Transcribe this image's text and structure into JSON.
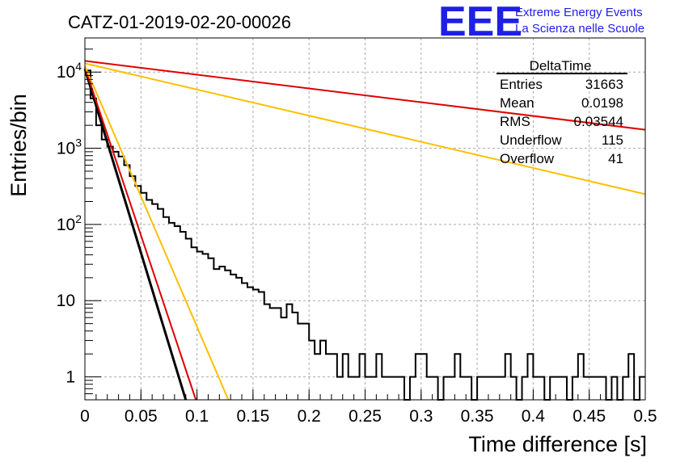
{
  "header": {
    "run_title": "CATZ-01-2019-02-20-00026",
    "logo_text": "EEE",
    "logo_line1": "Extreme Energy Events",
    "logo_line2": "La Scienza nelle Scuole"
  },
  "stats_box": {
    "name": "DeltaTime",
    "rows": [
      {
        "label": "Entries",
        "value": "31663"
      },
      {
        "label": "Mean",
        "value": "0.0198"
      },
      {
        "label": "RMS",
        "value": "0.03544"
      },
      {
        "label": "Underflow",
        "value": "115"
      },
      {
        "label": "Overflow",
        "value": "41"
      }
    ]
  },
  "chart_data": {
    "type": "line",
    "xlabel": "Time difference [s]",
    "ylabel": "Entries/bin",
    "xlim": [
      0,
      0.5
    ],
    "ylim": [
      0.5,
      28000
    ],
    "log_y": true,
    "grid": true,
    "x_ticks": [
      "0",
      "0.05",
      "0.1",
      "0.15",
      "0.2",
      "0.25",
      "0.3",
      "0.35",
      "0.4",
      "0.45",
      "0.5"
    ],
    "y_ticks": [
      {
        "value": 1,
        "base": "1",
        "exp": ""
      },
      {
        "value": 10,
        "base": "10",
        "exp": ""
      },
      {
        "value": 100,
        "base": "10",
        "exp": "2"
      },
      {
        "value": 1000,
        "base": "10",
        "exp": "3"
      },
      {
        "value": 10000,
        "base": "10",
        "exp": "4"
      }
    ],
    "histogram": {
      "bin_width": 0.005,
      "color": "#000000",
      "values": [
        10500,
        4500,
        2000,
        1300,
        1050,
        900,
        780,
        600,
        430,
        320,
        260,
        210,
        185,
        160,
        125,
        105,
        95,
        80,
        65,
        50,
        44,
        41,
        36,
        26,
        28,
        25,
        22,
        20,
        17,
        15,
        14,
        13,
        9,
        8,
        8,
        6,
        9,
        7,
        5,
        5,
        3,
        2,
        3,
        2,
        2,
        1,
        2,
        1,
        1,
        2,
        1,
        1,
        2,
        1,
        1,
        1,
        1,
        0,
        1,
        2,
        2,
        1,
        1,
        0,
        1,
        1,
        2,
        1,
        1,
        0,
        1,
        1,
        1,
        1,
        1,
        2,
        1,
        0,
        1,
        2,
        1,
        1,
        0,
        1,
        1,
        1,
        0,
        1,
        2,
        1,
        1,
        1,
        1,
        0,
        1,
        0,
        1,
        2,
        0,
        1
      ]
    },
    "fits": [
      {
        "color": "#000000",
        "x": [
          0.0,
          0.09
        ],
        "y": [
          11000,
          0.5
        ]
      },
      {
        "color": "#e00000",
        "x": [
          0.0,
          0.099
        ],
        "y": [
          11500,
          0.5
        ]
      },
      {
        "color": "#ffbf00",
        "x": [
          0.0,
          0.128
        ],
        "y": [
          12000,
          0.5
        ]
      },
      {
        "color": "#ffbf00",
        "x": [
          0.0,
          0.5
        ],
        "y": [
          13000,
          250
        ]
      },
      {
        "color": "#e00000",
        "x": [
          0.0,
          0.5
        ],
        "y": [
          14000,
          1750
        ]
      }
    ]
  }
}
